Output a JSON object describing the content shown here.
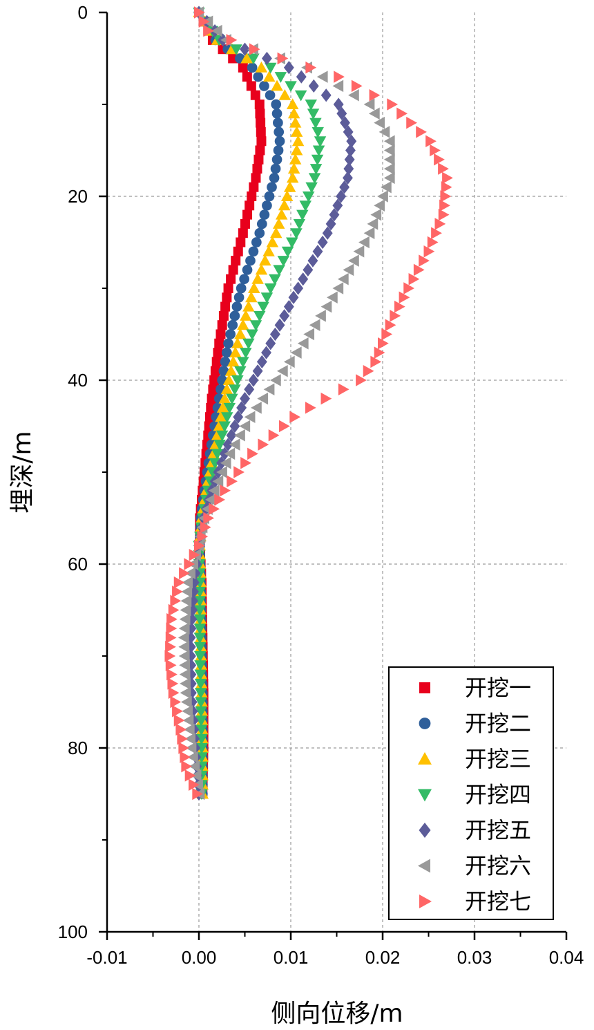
{
  "chart_data": {
    "type": "scatter",
    "xlabel": "侧向位移/m",
    "ylabel": "埋深/m",
    "xlim": [
      -0.01,
      0.04
    ],
    "ylim": [
      0,
      100
    ],
    "y_inverted": true,
    "xticks": [
      "-0.01",
      "0.00",
      "0.01",
      "0.02",
      "0.03",
      "0.04"
    ],
    "yticks": [
      "0",
      "20",
      "40",
      "60",
      "80",
      "100"
    ],
    "grid": true,
    "legend_position": "bottom-right",
    "depth_min": 0,
    "depth_max": 85,
    "depth_step": 1,
    "series": [
      {
        "name": "开挖一",
        "marker": "square",
        "color": "#e8001c",
        "points": [
          [
            0,
            0
          ],
          [
            3,
            0.0015
          ],
          [
            6,
            0.0048
          ],
          [
            10,
            0.0066
          ],
          [
            14,
            0.0068
          ],
          [
            18,
            0.0062
          ],
          [
            24,
            0.0048
          ],
          [
            30,
            0.0032
          ],
          [
            36,
            0.0022
          ],
          [
            42,
            0.0014
          ],
          [
            48,
            0.0008
          ],
          [
            52,
            0.0004
          ],
          [
            55,
            0.0001
          ],
          [
            58,
            0.0001
          ],
          [
            62,
            0.0003
          ],
          [
            68,
            0.0004
          ],
          [
            74,
            0.0005
          ],
          [
            80,
            0.0005
          ],
          [
            85,
            0.0004
          ]
        ]
      },
      {
        "name": "开挖二",
        "marker": "circle",
        "color": "#2f5f9a",
        "points": [
          [
            0,
            0
          ],
          [
            3,
            0.0018
          ],
          [
            6,
            0.0058
          ],
          [
            10,
            0.0084
          ],
          [
            14,
            0.0088
          ],
          [
            18,
            0.0082
          ],
          [
            24,
            0.0066
          ],
          [
            30,
            0.0046
          ],
          [
            36,
            0.0032
          ],
          [
            42,
            0.0022
          ],
          [
            48,
            0.0012
          ],
          [
            52,
            0.0006
          ],
          [
            55,
            0.0002
          ],
          [
            58,
            0.0001
          ],
          [
            62,
            0.0002
          ],
          [
            68,
            0.0003
          ],
          [
            74,
            0.0004
          ],
          [
            80,
            0.0004
          ],
          [
            85,
            0.0004
          ]
        ]
      },
      {
        "name": "开挖三",
        "marker": "triangle-up",
        "color": "#ffc000",
        "points": [
          [
            0,
            0
          ],
          [
            3,
            0.002
          ],
          [
            6,
            0.0068
          ],
          [
            10,
            0.0102
          ],
          [
            14,
            0.0108
          ],
          [
            18,
            0.0102
          ],
          [
            24,
            0.0084
          ],
          [
            30,
            0.006
          ],
          [
            36,
            0.0042
          ],
          [
            42,
            0.0028
          ],
          [
            48,
            0.0016
          ],
          [
            52,
            0.0008
          ],
          [
            55,
            0.0003
          ],
          [
            58,
            0.0001
          ],
          [
            62,
            0.0002
          ],
          [
            68,
            0.0002
          ],
          [
            74,
            0.0003
          ],
          [
            80,
            0.0004
          ],
          [
            85,
            0.0004
          ]
        ]
      },
      {
        "name": "开挖四",
        "marker": "triangle-down",
        "color": "#33bb66",
        "points": [
          [
            0,
            0
          ],
          [
            3,
            0.0022
          ],
          [
            6,
            0.0078
          ],
          [
            10,
            0.0122
          ],
          [
            14,
            0.0132
          ],
          [
            18,
            0.0126
          ],
          [
            24,
            0.0106
          ],
          [
            30,
            0.0078
          ],
          [
            36,
            0.0054
          ],
          [
            42,
            0.0036
          ],
          [
            48,
            0.002
          ],
          [
            52,
            0.001
          ],
          [
            55,
            0.0004
          ],
          [
            58,
            0.0
          ],
          [
            62,
            0.0001
          ],
          [
            68,
            0.0001
          ],
          [
            74,
            0.0002
          ],
          [
            80,
            0.0003
          ],
          [
            85,
            0.0003
          ]
        ]
      },
      {
        "name": "开挖五",
        "marker": "diamond",
        "color": "#5c5c99",
        "points": [
          [
            0,
            0
          ],
          [
            3,
            0.0026
          ],
          [
            6,
            0.0098
          ],
          [
            10,
            0.0152
          ],
          [
            14,
            0.0166
          ],
          [
            18,
            0.0162
          ],
          [
            24,
            0.014
          ],
          [
            30,
            0.0108
          ],
          [
            36,
            0.0078
          ],
          [
            42,
            0.005
          ],
          [
            48,
            0.0028
          ],
          [
            52,
            0.0014
          ],
          [
            55,
            0.0005
          ],
          [
            58,
            0.0
          ],
          [
            62,
            -0.0005
          ],
          [
            68,
            -0.0009
          ],
          [
            74,
            -0.0008
          ],
          [
            80,
            -0.0004
          ],
          [
            85,
            0.0
          ]
        ]
      },
      {
        "name": "开挖六",
        "marker": "triangle-left",
        "color": "#999999",
        "points": [
          [
            0,
            0
          ],
          [
            3,
            0.003
          ],
          [
            6,
            0.0118
          ],
          [
            10,
            0.0186
          ],
          [
            14,
            0.0208
          ],
          [
            18,
            0.0208
          ],
          [
            24,
            0.0186
          ],
          [
            30,
            0.0152
          ],
          [
            36,
            0.0114
          ],
          [
            40,
            0.0084
          ],
          [
            44,
            0.0056
          ],
          [
            48,
            0.0034
          ],
          [
            52,
            0.0017
          ],
          [
            55,
            0.0006
          ],
          [
            58,
            0.0
          ],
          [
            62,
            -0.0012
          ],
          [
            68,
            -0.0016
          ],
          [
            74,
            -0.0014
          ],
          [
            80,
            -0.0008
          ],
          [
            85,
            0.0001
          ]
        ]
      },
      {
        "name": "开挖七",
        "marker": "triangle-right",
        "color": "#ff6666",
        "points": [
          [
            0,
            0
          ],
          [
            2,
            0.001
          ],
          [
            4,
            0.006
          ],
          [
            7,
            0.0152
          ],
          [
            10,
            0.021
          ],
          [
            14,
            0.0252
          ],
          [
            18,
            0.027
          ],
          [
            22,
            0.0266
          ],
          [
            26,
            0.025
          ],
          [
            30,
            0.0228
          ],
          [
            34,
            0.0208
          ],
          [
            38,
            0.0192
          ],
          [
            40,
            0.0176
          ],
          [
            42,
            0.0138
          ],
          [
            44,
            0.0104
          ],
          [
            48,
            0.0058
          ],
          [
            52,
            0.0028
          ],
          [
            55,
            0.001
          ],
          [
            58,
            0.0
          ],
          [
            62,
            -0.0022
          ],
          [
            66,
            -0.003
          ],
          [
            70,
            -0.0032
          ],
          [
            74,
            -0.0028
          ],
          [
            78,
            -0.002
          ],
          [
            82,
            -0.0014
          ],
          [
            85,
            -0.0002
          ]
        ]
      }
    ]
  }
}
